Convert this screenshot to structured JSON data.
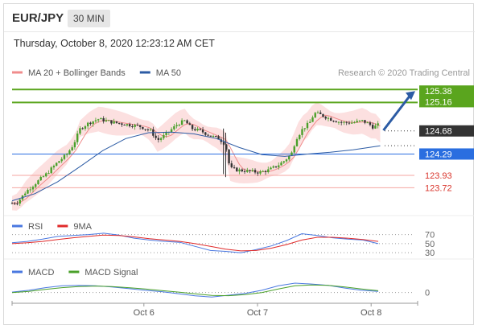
{
  "header": {
    "pair": "EUR/JPY",
    "timeframe": "30 MIN"
  },
  "subheader": {
    "datetime": "Thursday, October 8, 2020 12:23:12 AM CET"
  },
  "chart_data": [
    {
      "type": "candlestick",
      "panel": "price",
      "legend": [
        {
          "name": "MA 20 + Bollinger Bands",
          "color": "#f08c8c"
        },
        {
          "name": "MA 50",
          "color": "#2c5ba4"
        }
      ],
      "credit": "Research © 2020 Trading Central",
      "ylim": [
        123.4,
        125.6
      ],
      "levels": [
        {
          "value": 125.38,
          "label": "125.38",
          "color": "#5aa51e",
          "style": "box"
        },
        {
          "value": 125.16,
          "label": "125.16",
          "color": "#5aa51e",
          "style": "box"
        },
        {
          "value": 124.68,
          "label": "124.68",
          "color": "#333333",
          "style": "box"
        },
        {
          "value": 124.29,
          "label": "124.29",
          "color": "#2a6ee0",
          "style": "box"
        },
        {
          "value": 123.93,
          "label": "123.93",
          "color": "#d9342b",
          "style": "text"
        },
        {
          "value": 123.72,
          "label": "123.72",
          "color": "#d9342b",
          "style": "text"
        }
      ],
      "price_path": [
        [
          0,
          123.46
        ],
        [
          5,
          123.48
        ],
        [
          12,
          123.65
        ],
        [
          22,
          123.82
        ],
        [
          30,
          123.95
        ],
        [
          40,
          124.15
        ],
        [
          48,
          124.28
        ],
        [
          54,
          124.45
        ],
        [
          60,
          124.72
        ],
        [
          68,
          124.82
        ],
        [
          76,
          124.88
        ],
        [
          90,
          124.82
        ],
        [
          104,
          124.78
        ],
        [
          112,
          124.76
        ],
        [
          122,
          124.68
        ],
        [
          128,
          124.52
        ],
        [
          134,
          124.6
        ],
        [
          140,
          124.7
        ],
        [
          146,
          124.8
        ],
        [
          152,
          124.85
        ],
        [
          158,
          124.72
        ],
        [
          166,
          124.68
        ],
        [
          174,
          124.6
        ],
        [
          182,
          124.55
        ],
        [
          188,
          124.45
        ],
        [
          190,
          124.2
        ],
        [
          192,
          124.05
        ],
        [
          198,
          124.02
        ],
        [
          208,
          124.0
        ],
        [
          218,
          123.98
        ],
        [
          226,
          124.02
        ],
        [
          234,
          124.1
        ],
        [
          240,
          124.18
        ],
        [
          246,
          124.3
        ],
        [
          250,
          124.55
        ],
        [
          256,
          124.72
        ],
        [
          262,
          124.82
        ],
        [
          266,
          124.98
        ],
        [
          272,
          124.95
        ],
        [
          280,
          124.88
        ],
        [
          290,
          124.82
        ],
        [
          300,
          124.82
        ],
        [
          308,
          124.85
        ],
        [
          314,
          124.8
        ],
        [
          318,
          124.74
        ],
        [
          322,
          124.78
        ],
        [
          324,
          124.68
        ]
      ],
      "ma50_path": [
        [
          0,
          123.5
        ],
        [
          20,
          123.62
        ],
        [
          40,
          123.82
        ],
        [
          60,
          124.08
        ],
        [
          80,
          124.35
        ],
        [
          100,
          124.55
        ],
        [
          120,
          124.65
        ],
        [
          140,
          124.66
        ],
        [
          160,
          124.63
        ],
        [
          180,
          124.55
        ],
        [
          200,
          124.4
        ],
        [
          220,
          124.28
        ],
        [
          240,
          124.25
        ],
        [
          260,
          124.29
        ],
        [
          280,
          124.32
        ],
        [
          300,
          124.36
        ],
        [
          324,
          124.43
        ]
      ],
      "x_ticks": [
        {
          "label": "Oct 6",
          "x": 116
        },
        {
          "label": "Oct 7",
          "x": 216
        },
        {
          "label": "Oct 8",
          "x": 316
        }
      ]
    },
    {
      "type": "line",
      "panel": "rsi",
      "legend": [
        {
          "name": "RSI",
          "color": "#4a78e0"
        },
        {
          "name": "9MA",
          "color": "#e02a2a"
        }
      ],
      "levels": [
        70,
        50,
        30
      ],
      "ylim": [
        25,
        80
      ],
      "series": [
        {
          "name": "RSI",
          "values": [
            52,
            55,
            60,
            66,
            68,
            70,
            73,
            69,
            62,
            58,
            55,
            53,
            44,
            35,
            33,
            30,
            37,
            45,
            57,
            72,
            68,
            63,
            60,
            58,
            50
          ]
        },
        {
          "name": "9MA",
          "values": [
            50,
            52,
            55,
            59,
            63,
            66,
            69,
            68,
            65,
            61,
            58,
            55,
            50,
            44,
            38,
            34,
            35,
            40,
            48,
            58,
            64,
            64,
            62,
            59,
            55
          ]
        }
      ]
    },
    {
      "type": "line",
      "panel": "macd",
      "legend": [
        {
          "name": "MACD",
          "color": "#4a78e0"
        },
        {
          "name": "MACD Signal",
          "color": "#4aa02a"
        }
      ],
      "levels": [
        0
      ],
      "ylim": [
        -0.3,
        0.6
      ],
      "series": [
        {
          "name": "MACD",
          "values": [
            0.02,
            0.1,
            0.22,
            0.3,
            0.32,
            0.3,
            0.25,
            0.18,
            0.1,
            0.04,
            -0.05,
            -0.15,
            -0.2,
            -0.12,
            -0.04,
            0.1,
            0.3,
            0.42,
            0.38,
            0.32,
            0.2,
            0.1,
            0.05
          ]
        },
        {
          "name": "MACD Signal",
          "values": [
            0.0,
            0.05,
            0.14,
            0.22,
            0.27,
            0.29,
            0.27,
            0.22,
            0.16,
            0.09,
            0.02,
            -0.06,
            -0.13,
            -0.14,
            -0.09,
            0.0,
            0.16,
            0.3,
            0.34,
            0.32,
            0.25,
            0.16,
            0.08
          ]
        }
      ]
    }
  ]
}
